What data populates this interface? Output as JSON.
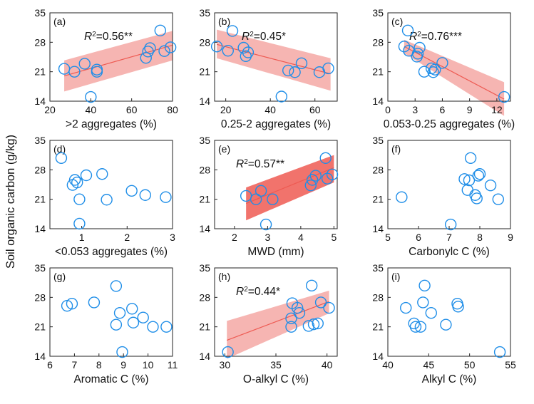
{
  "ylabel": "Soil organic carbon (g/kg)",
  "chart_data": [
    {
      "type": "scatter",
      "panel_label": "(a)",
      "xlabel": ">2 aggregates (%)",
      "xlim": [
        20,
        80
      ],
      "xticks": [
        20,
        40,
        60,
        80
      ],
      "xtick_labels": [
        "20",
        "40",
        "60",
        "80"
      ],
      "ylim": [
        14,
        35
      ],
      "yticks": [
        14,
        21,
        28,
        35
      ],
      "ytick_labels": [
        "14",
        "21",
        "28",
        "35"
      ],
      "r2_value": "=0.56**",
      "fit": {
        "x": [
          27,
          80
        ],
        "y": [
          20.0,
          27.3
        ],
        "ci_lower_y": [
          16.3,
          23.7
        ],
        "ci_upper_y": [
          23.7,
          30.7
        ],
        "color": "#ee5a52",
        "ci_color": "#f4a8a4"
      },
      "points": [
        [
          27,
          21.7
        ],
        [
          32,
          21.0
        ],
        [
          37,
          22.9
        ],
        [
          40,
          15.0
        ],
        [
          43,
          21.0
        ],
        [
          43,
          21.5
        ],
        [
          67,
          24.3
        ],
        [
          68,
          25.8
        ],
        [
          69,
          26.6
        ],
        [
          74,
          30.8
        ],
        [
          76,
          25.9
        ],
        [
          79,
          26.8
        ]
      ]
    },
    {
      "type": "scatter",
      "panel_label": "(b)",
      "xlabel": "0.25-2 aggregates (%)",
      "xlim": [
        15,
        70
      ],
      "xticks": [
        20,
        40,
        60
      ],
      "xtick_labels": [
        "20",
        "40",
        "60"
      ],
      "ylim": [
        14,
        35
      ],
      "yticks": [
        14,
        21,
        28,
        35
      ],
      "ytick_labels": [
        "14",
        "21",
        "28",
        "35"
      ],
      "r2_value": "=0.45*",
      "fit": {
        "x": [
          16,
          67
        ],
        "y": [
          27.5,
          20.5
        ],
        "ci_lower_y": [
          24.2,
          16.5
        ],
        "ci_upper_y": [
          31.0,
          24.2
        ],
        "color": "#ee5a52",
        "ci_color": "#f4a8a4"
      },
      "points": [
        [
          16,
          27.0
        ],
        [
          21,
          26.0
        ],
        [
          23,
          30.7
        ],
        [
          28,
          26.7
        ],
        [
          29,
          24.7
        ],
        [
          30,
          25.6
        ],
        [
          45,
          15.1
        ],
        [
          48,
          21.3
        ],
        [
          51,
          20.9
        ],
        [
          54,
          23.0
        ],
        [
          62,
          20.9
        ],
        [
          66,
          21.8
        ]
      ]
    },
    {
      "type": "scatter",
      "panel_label": "(c)",
      "xlabel": "0.053-0.25 aggregates (%)",
      "xlim": [
        0,
        13.5
      ],
      "xticks": [
        0,
        3,
        6,
        9,
        12
      ],
      "xtick_labels": [
        "0",
        "3",
        "6",
        "9",
        "12"
      ],
      "ylim": [
        14,
        35
      ],
      "yticks": [
        14,
        21,
        28,
        35
      ],
      "ytick_labels": [
        "14",
        "21",
        "28",
        "35"
      ],
      "r2_value": "=0.76***",
      "fit": {
        "x": [
          1.8,
          12.8
        ],
        "y": [
          27.0,
          14.5
        ],
        "ci_lower_y": [
          25.4,
          10.5
        ],
        "ci_upper_y": [
          28.6,
          18.5
        ],
        "color": "#ee5a52",
        "ci_color": "#f4a8a4"
      },
      "points": [
        [
          1.8,
          27.0
        ],
        [
          2.2,
          30.8
        ],
        [
          2.3,
          26.0
        ],
        [
          3.2,
          24.6
        ],
        [
          3.3,
          25.3
        ],
        [
          3.5,
          26.7
        ],
        [
          4.0,
          21.0
        ],
        [
          4.8,
          21.8
        ],
        [
          5.0,
          20.9
        ],
        [
          5.2,
          21.5
        ],
        [
          6.0,
          23.1
        ],
        [
          12.8,
          15.0
        ]
      ]
    },
    {
      "type": "scatter",
      "panel_label": "(d)",
      "xlabel": "<0.053 aggregates (%)",
      "xlim": [
        0.3,
        3.0
      ],
      "xticks": [
        1,
        2,
        3
      ],
      "xtick_labels": [
        "1",
        "2",
        "3"
      ],
      "ylim": [
        14,
        35
      ],
      "yticks": [
        14,
        21,
        28,
        35
      ],
      "ytick_labels": [
        "14",
        "21",
        "28",
        "35"
      ],
      "r2_value": "",
      "fit": null,
      "points": [
        [
          0.55,
          30.8
        ],
        [
          0.8,
          24.4
        ],
        [
          0.85,
          25.6
        ],
        [
          0.9,
          25.0
        ],
        [
          0.95,
          21.0
        ],
        [
          0.95,
          15.2
        ],
        [
          1.1,
          26.7
        ],
        [
          1.45,
          27.0
        ],
        [
          1.55,
          20.9
        ],
        [
          2.1,
          23.0
        ],
        [
          2.4,
          22.0
        ],
        [
          2.85,
          21.5
        ]
      ]
    },
    {
      "type": "scatter",
      "panel_label": "(e)",
      "xlabel": "MWD (mm)",
      "xlim": [
        1.4,
        5.1
      ],
      "xticks": [
        2,
        3,
        4,
        5
      ],
      "xtick_labels": [
        "2",
        "3",
        "4",
        "5"
      ],
      "ylim": [
        14,
        35
      ],
      "yticks": [
        14,
        21,
        28,
        35
      ],
      "ytick_labels": [
        "14",
        "21",
        "28",
        "35"
      ],
      "r2_value": "=0.57**",
      "fit": {
        "x": [
          2.35,
          5.0
        ],
        "y": [
          20.0,
          28.5
        ],
        "ci_lower_y": [
          16.0,
          25.0
        ],
        "ci_upper_y": [
          23.8,
          31.5
        ],
        "color": "#ee5a52",
        "ci_color": "#ee5a52"
      },
      "points": [
        [
          2.35,
          21.8
        ],
        [
          2.65,
          21.0
        ],
        [
          2.8,
          23.0
        ],
        [
          2.95,
          15.0
        ],
        [
          3.15,
          21.0
        ],
        [
          4.3,
          24.3
        ],
        [
          4.35,
          25.6
        ],
        [
          4.45,
          26.6
        ],
        [
          4.75,
          30.8
        ],
        [
          4.8,
          25.9
        ],
        [
          4.95,
          26.9
        ]
      ]
    },
    {
      "type": "scatter",
      "panel_label": "(f)",
      "xlabel": "Carbonylc C (%)",
      "xlim": [
        5,
        9
      ],
      "xticks": [
        5,
        6,
        7,
        8,
        9
      ],
      "xtick_labels": [
        "5",
        "6",
        "7",
        "8",
        "9"
      ],
      "ylim": [
        14,
        35
      ],
      "yticks": [
        14,
        21,
        28,
        35
      ],
      "ytick_labels": [
        "14",
        "21",
        "28",
        "35"
      ],
      "r2_value": "",
      "fit": null,
      "points": [
        [
          5.45,
          21.5
        ],
        [
          7.05,
          15.0
        ],
        [
          7.5,
          25.8
        ],
        [
          7.6,
          23.2
        ],
        [
          7.65,
          25.5
        ],
        [
          7.7,
          30.8
        ],
        [
          7.85,
          22.0
        ],
        [
          7.9,
          21.2
        ],
        [
          7.95,
          26.6
        ],
        [
          8.0,
          27.0
        ],
        [
          8.35,
          24.3
        ],
        [
          8.6,
          21.0
        ]
      ]
    },
    {
      "type": "scatter",
      "panel_label": "(g)",
      "xlabel": "Aromatic C (%)",
      "xlim": [
        6,
        11
      ],
      "xticks": [
        6,
        7,
        8,
        9,
        10,
        11
      ],
      "xtick_labels": [
        "6",
        "7",
        "8",
        "9",
        "10",
        "11"
      ],
      "ylim": [
        14,
        35
      ],
      "yticks": [
        14,
        21,
        28,
        35
      ],
      "ytick_labels": [
        "14",
        "21",
        "28",
        "35"
      ],
      "r2_value": "",
      "fit": null,
      "points": [
        [
          6.7,
          26.0
        ],
        [
          6.9,
          26.5
        ],
        [
          7.8,
          26.8
        ],
        [
          8.7,
          21.5
        ],
        [
          8.7,
          30.7
        ],
        [
          8.85,
          24.3
        ],
        [
          8.95,
          15.0
        ],
        [
          9.35,
          25.3
        ],
        [
          9.4,
          22.0
        ],
        [
          9.8,
          23.2
        ],
        [
          10.2,
          21.0
        ],
        [
          10.75,
          21.0
        ]
      ]
    },
    {
      "type": "scatter",
      "panel_label": "(h)",
      "xlabel": "O-alkyl C (%)",
      "xlim": [
        29,
        41
      ],
      "xticks": [
        30,
        35,
        40
      ],
      "xtick_labels": [
        "30",
        "35",
        "40"
      ],
      "ylim": [
        14,
        35
      ],
      "yticks": [
        14,
        21,
        28,
        35
      ],
      "ytick_labels": [
        "14",
        "21",
        "28",
        "35"
      ],
      "r2_value": "=0.44*",
      "fit": {
        "x": [
          30.2,
          40.2
        ],
        "y": [
          17.8,
          27.0
        ],
        "ci_lower_y": [
          13.4,
          24.2
        ],
        "ci_upper_y": [
          22.4,
          29.6
        ],
        "color": "#ee5a52",
        "ci_color": "#f4a8a4"
      },
      "points": [
        [
          30.3,
          15.0
        ],
        [
          36.5,
          21.0
        ],
        [
          36.5,
          23.0
        ],
        [
          36.6,
          26.6
        ],
        [
          37.1,
          25.5
        ],
        [
          37.3,
          24.3
        ],
        [
          38.2,
          21.2
        ],
        [
          38.5,
          30.8
        ],
        [
          38.7,
          21.6
        ],
        [
          39.1,
          21.8
        ],
        [
          39.4,
          26.8
        ],
        [
          40.2,
          25.5
        ]
      ]
    },
    {
      "type": "scatter",
      "panel_label": "(i)",
      "xlabel": "Alkyl C (%)",
      "xlim": [
        40,
        55
      ],
      "xticks": [
        40,
        45,
        50,
        55
      ],
      "xtick_labels": [
        "40",
        "45",
        "50",
        "55"
      ],
      "ylim": [
        14,
        35
      ],
      "yticks": [
        14,
        21,
        28,
        35
      ],
      "ytick_labels": [
        "14",
        "21",
        "28",
        "35"
      ],
      "r2_value": "",
      "fit": null,
      "points": [
        [
          42.2,
          25.5
        ],
        [
          43.2,
          21.8
        ],
        [
          43.4,
          21.0
        ],
        [
          44.0,
          21.0
        ],
        [
          44.3,
          26.8
        ],
        [
          44.5,
          30.8
        ],
        [
          45.3,
          24.3
        ],
        [
          47.1,
          21.5
        ],
        [
          48.5,
          26.5
        ],
        [
          48.6,
          25.8
        ],
        [
          53.7,
          15.0
        ]
      ]
    }
  ],
  "colors": {
    "marker": "#1f8ee8",
    "axis": "#222222"
  }
}
